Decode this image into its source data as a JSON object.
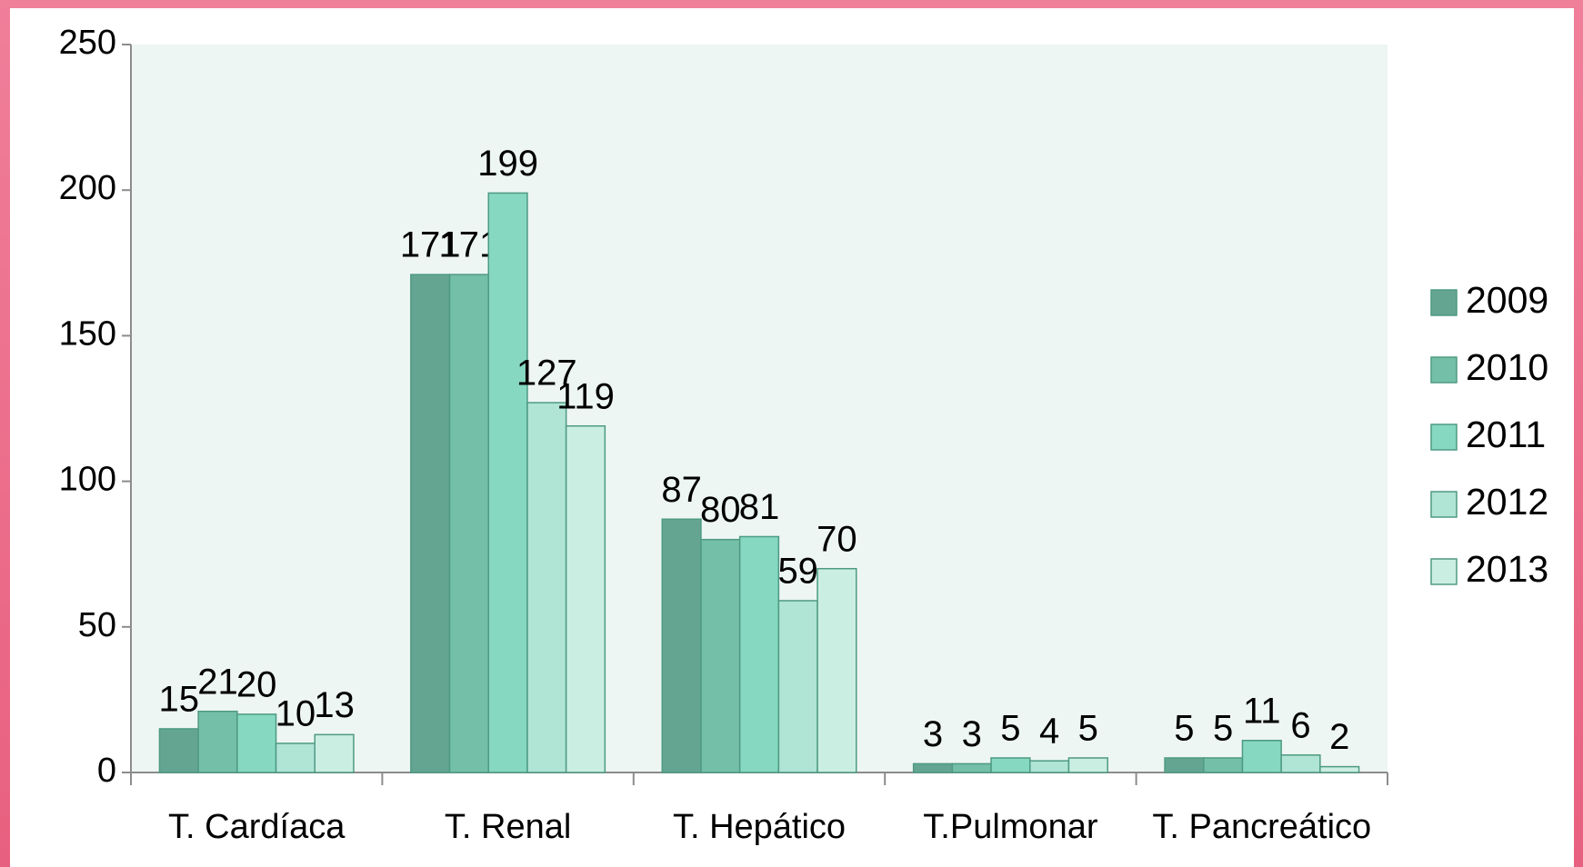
{
  "chart_data": {
    "type": "bar",
    "categories": [
      "T. Cardíaca",
      "T. Renal",
      "T. Hepático",
      "T.Pulmonar",
      "T. Pancreático"
    ],
    "series": [
      {
        "name": "2009",
        "color": "#64a592",
        "values": [
          15,
          171,
          87,
          3,
          5
        ]
      },
      {
        "name": "2010",
        "color": "#74bfa8",
        "values": [
          21,
          171,
          80,
          3,
          5
        ]
      },
      {
        "name": "2011",
        "color": "#86d8c0",
        "values": [
          20,
          199,
          81,
          5,
          11
        ]
      },
      {
        "name": "2012",
        "color": "#b0e4d4",
        "values": [
          10,
          127,
          59,
          4,
          6
        ]
      },
      {
        "name": "2013",
        "color": "#cbeee3",
        "values": [
          13,
          119,
          70,
          5,
          2
        ]
      }
    ],
    "ylim": [
      0,
      250
    ],
    "yticks": [
      0,
      50,
      100,
      150,
      200,
      250
    ],
    "grid": false,
    "legend": "right"
  }
}
